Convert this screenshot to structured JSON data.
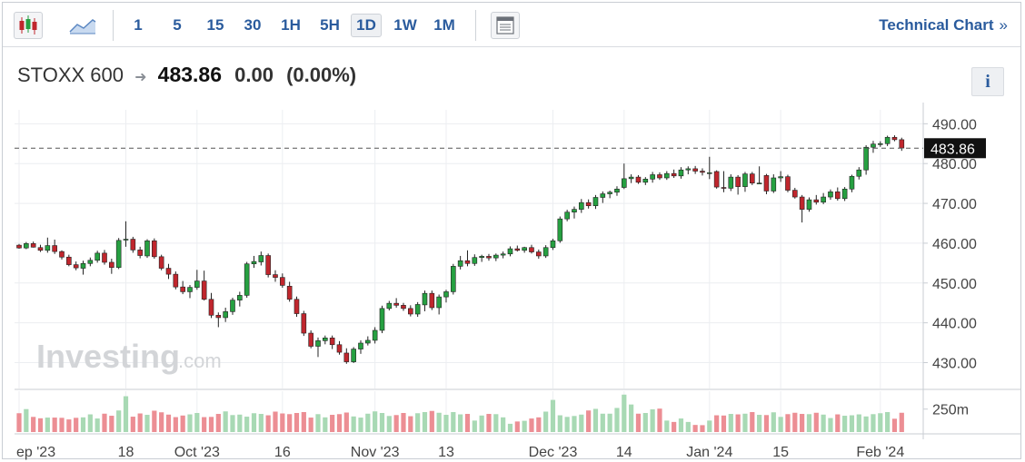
{
  "toolbar": {
    "chart_types": [
      "candlestick-icon",
      "area-chart-icon"
    ],
    "intervals": [
      "1",
      "5",
      "15",
      "30",
      "1H",
      "5H",
      "1D",
      "1W",
      "1M"
    ],
    "active_interval": "1D",
    "layout_icon": "layout-icon",
    "technical_chart_label": "Technical Chart",
    "technical_chart_chevron": "»"
  },
  "header": {
    "name": "STOXX 600",
    "price": "483.86",
    "change": "0.00",
    "change_pct": "(0.00%)",
    "info_label": "i"
  },
  "watermark": {
    "brand": "Investing",
    "suffix": ".com"
  },
  "colors": {
    "up": "#26a041",
    "down": "#c0262d",
    "vol_up": "#a8d9b4",
    "vol_down": "#ec8e94"
  },
  "chart_data": {
    "type": "candlestick",
    "title": "STOXX 600",
    "y_ticks": [
      "490.00",
      "480.00",
      "470.00",
      "460.00",
      "450.00",
      "440.00",
      "430.00"
    ],
    "ylim": [
      423.5,
      493.5
    ],
    "last_price": 483.86,
    "last_price_label": "483.86",
    "volume_tick_label": "250m",
    "x_tick_labels": [
      "ep '23",
      "18",
      "Oct '23",
      "16",
      "Nov '23",
      "13",
      "Dec '23",
      "14",
      "Jan '24",
      "15",
      "Feb '24"
    ],
    "x_tick_index": [
      0,
      15,
      25,
      37,
      50,
      60,
      75,
      85,
      97,
      107,
      121
    ],
    "candles": [
      [
        459.5,
        459.8,
        458.6,
        458.8
      ],
      [
        458.8,
        460.3,
        458.5,
        459.9
      ],
      [
        459.9,
        460.4,
        458.9,
        459.0
      ],
      [
        458.9,
        459.6,
        457.8,
        458.2
      ],
      [
        458.2,
        461.4,
        457.6,
        459.4
      ],
      [
        459.4,
        460.9,
        457.3,
        457.9
      ],
      [
        457.9,
        458.2,
        455.9,
        456.5
      ],
      [
        456.5,
        457.1,
        454.2,
        454.6
      ],
      [
        454.6,
        455.4,
        453.2,
        453.8
      ],
      [
        453.7,
        455.6,
        452.1,
        454.9
      ],
      [
        454.9,
        456.4,
        454.2,
        455.7
      ],
      [
        455.7,
        458.1,
        455.1,
        457.5
      ],
      [
        457.5,
        458.3,
        454.6,
        455.2
      ],
      [
        455.2,
        456.1,
        452.3,
        453.9
      ],
      [
        453.9,
        461.3,
        453.5,
        460.7
      ],
      [
        460.8,
        465.5,
        459.1,
        461.0
      ],
      [
        461.0,
        461.6,
        457.6,
        458.3
      ],
      [
        458.3,
        459.1,
        456.2,
        456.9
      ],
      [
        456.8,
        461.0,
        456.3,
        460.6
      ],
      [
        460.6,
        461.2,
        456.1,
        456.6
      ],
      [
        456.6,
        457.1,
        453.2,
        453.7
      ],
      [
        453.7,
        454.8,
        451.0,
        452.2
      ],
      [
        452.2,
        452.9,
        448.4,
        449.0
      ],
      [
        449.0,
        450.5,
        447.2,
        447.8
      ],
      [
        447.8,
        449.5,
        446.2,
        448.9
      ],
      [
        448.9,
        453.3,
        448.3,
        450.5
      ],
      [
        450.5,
        453.1,
        445.6,
        445.9
      ],
      [
        445.9,
        447.5,
        441.2,
        441.9
      ],
      [
        441.9,
        442.6,
        438.9,
        441.3
      ],
      [
        441.3,
        443.8,
        440.2,
        442.8
      ],
      [
        442.8,
        446.3,
        442.0,
        445.7
      ],
      [
        445.7,
        447.8,
        444.1,
        446.9
      ],
      [
        446.9,
        455.3,
        446.3,
        454.8
      ],
      [
        454.8,
        456.8,
        453.8,
        455.4
      ],
      [
        455.3,
        457.9,
        454.4,
        456.9
      ],
      [
        456.9,
        457.4,
        451.4,
        452.1
      ],
      [
        452.1,
        453.2,
        450.3,
        451.4
      ],
      [
        451.4,
        452.4,
        448.8,
        449.4
      ],
      [
        449.2,
        450.3,
        445.3,
        445.9
      ],
      [
        445.9,
        446.6,
        441.5,
        442.3
      ],
      [
        442.3,
        443.0,
        436.7,
        437.4
      ],
      [
        437.4,
        438.1,
        433.6,
        434.1
      ],
      [
        434.1,
        436.3,
        431.4,
        435.5
      ],
      [
        435.5,
        436.8,
        434.6,
        436.2
      ],
      [
        436.2,
        436.8,
        433.4,
        434.5
      ],
      [
        434.5,
        435.4,
        432.0,
        432.6
      ],
      [
        432.4,
        433.6,
        429.7,
        430.2
      ],
      [
        430.2,
        433.9,
        429.9,
        433.4
      ],
      [
        433.4,
        435.6,
        432.2,
        434.9
      ],
      [
        434.9,
        436.6,
        434.3,
        435.6
      ],
      [
        435.6,
        438.9,
        434.8,
        438.1
      ],
      [
        438.1,
        444.3,
        437.4,
        443.6
      ],
      [
        443.6,
        445.5,
        443.1,
        444.9
      ],
      [
        444.9,
        446.2,
        443.8,
        444.4
      ],
      [
        444.4,
        445.0,
        443.0,
        443.6
      ],
      [
        443.6,
        444.4,
        441.6,
        442.2
      ],
      [
        442.2,
        445.2,
        441.5,
        444.6
      ],
      [
        444.5,
        448.1,
        442.9,
        447.4
      ],
      [
        447.4,
        448.1,
        443.2,
        443.8
      ],
      [
        443.8,
        447.1,
        442.1,
        446.5
      ],
      [
        446.5,
        448.3,
        445.1,
        447.8
      ],
      [
        447.8,
        454.8,
        447.1,
        454.2
      ],
      [
        454.2,
        456.8,
        453.4,
        455.6
      ],
      [
        455.6,
        458.2,
        454.2,
        454.9
      ],
      [
        454.9,
        457.2,
        454.3,
        456.4
      ],
      [
        456.4,
        457.1,
        455.3,
        456.7
      ],
      [
        456.7,
        457.3,
        455.6,
        456.3
      ],
      [
        456.3,
        457.4,
        455.5,
        457.0
      ],
      [
        457.0,
        457.9,
        456.2,
        457.3
      ],
      [
        457.3,
        459.2,
        456.7,
        458.6
      ],
      [
        458.6,
        459.4,
        457.9,
        458.2
      ],
      [
        458.2,
        459.1,
        457.6,
        458.9
      ],
      [
        458.9,
        459.6,
        457.4,
        457.8
      ],
      [
        457.8,
        458.4,
        456.1,
        456.8
      ],
      [
        456.8,
        459.5,
        456.3,
        458.9
      ],
      [
        458.9,
        461.1,
        458.3,
        460.6
      ],
      [
        460.6,
        466.7,
        460.1,
        466.1
      ],
      [
        466.1,
        468.4,
        465.5,
        467.8
      ],
      [
        467.8,
        469.2,
        466.2,
        468.5
      ],
      [
        468.5,
        471.1,
        467.6,
        470.2
      ],
      [
        470.2,
        471.0,
        468.7,
        469.4
      ],
      [
        469.4,
        472.1,
        468.6,
        471.5
      ],
      [
        471.5,
        473.0,
        470.1,
        472.4
      ],
      [
        472.4,
        473.2,
        471.3,
        472.8
      ],
      [
        472.8,
        474.3,
        471.9,
        473.6
      ],
      [
        474.0,
        480.0,
        473.6,
        476.2
      ],
      [
        476.2,
        477.3,
        475.1,
        476.6
      ],
      [
        476.6,
        477.1,
        474.9,
        475.3
      ],
      [
        475.3,
        476.6,
        474.6,
        476.1
      ],
      [
        476.1,
        477.9,
        475.2,
        477.2
      ],
      [
        477.2,
        477.8,
        475.9,
        476.4
      ],
      [
        476.4,
        478.1,
        475.9,
        477.5
      ],
      [
        477.5,
        478.5,
        476.4,
        476.9
      ],
      [
        476.9,
        479.1,
        476.2,
        478.4
      ],
      [
        478.4,
        479.3,
        477.3,
        478.7
      ],
      [
        478.7,
        479.4,
        477.4,
        478.1
      ],
      [
        478.1,
        478.8,
        477.0,
        477.8
      ],
      [
        477.5,
        481.7,
        476.1,
        477.7
      ],
      [
        478.0,
        478.3,
        473.7,
        474.1
      ],
      [
        474.0,
        478.1,
        472.8,
        473.8
      ],
      [
        473.8,
        477.3,
        473.1,
        476.6
      ],
      [
        476.6,
        477.1,
        472.2,
        474.2
      ],
      [
        474.2,
        477.9,
        472.9,
        477.4
      ],
      [
        477.4,
        477.9,
        474.6,
        475.1
      ],
      [
        475.1,
        479.3,
        474.9,
        475.1
      ],
      [
        477.0,
        477.4,
        472.3,
        473.1
      ],
      [
        473.1,
        477.3,
        472.6,
        476.4
      ],
      [
        476.4,
        478.1,
        475.4,
        476.7
      ],
      [
        476.7,
        477.2,
        472.8,
        473.3
      ],
      [
        473.3,
        473.9,
        471.2,
        471.6
      ],
      [
        471.6,
        472.1,
        465.2,
        468.5
      ],
      [
        468.5,
        471.5,
        467.9,
        470.9
      ],
      [
        470.9,
        472.1,
        469.7,
        470.3
      ],
      [
        470.3,
        472.6,
        469.8,
        471.6
      ],
      [
        471.6,
        473.5,
        470.9,
        472.9
      ],
      [
        472.9,
        474.0,
        470.7,
        471.2
      ],
      [
        471.2,
        474.1,
        470.6,
        473.6
      ],
      [
        473.6,
        477.2,
        472.8,
        476.8
      ],
      [
        476.8,
        479.1,
        476.0,
        478.4
      ],
      [
        478.4,
        484.6,
        477.2,
        484.1
      ],
      [
        484.1,
        485.7,
        482.7,
        484.9
      ],
      [
        484.9,
        485.6,
        484.2,
        485.0
      ],
      [
        485.0,
        487.0,
        484.4,
        486.6
      ],
      [
        486.6,
        487.1,
        485.6,
        486.0
      ],
      [
        486.0,
        486.5,
        483.2,
        483.9
      ]
    ],
    "volumes": [
      0.82,
      1.0,
      0.66,
      0.6,
      0.63,
      0.63,
      0.62,
      0.55,
      0.62,
      0.64,
      0.77,
      0.59,
      0.8,
      0.71,
      0.94,
      1.56,
      0.67,
      0.81,
      0.75,
      0.93,
      0.86,
      0.76,
      0.65,
      0.72,
      0.77,
      0.83,
      0.65,
      0.66,
      0.79,
      0.9,
      0.74,
      0.76,
      0.67,
      0.82,
      0.79,
      0.73,
      0.89,
      0.81,
      0.78,
      0.83,
      0.87,
      0.63,
      0.78,
      0.64,
      0.75,
      0.78,
      0.85,
      0.68,
      0.63,
      0.8,
      0.9,
      0.83,
      0.7,
      0.74,
      0.83,
      0.69,
      0.82,
      0.87,
      0.92,
      0.84,
      0.75,
      0.87,
      0.77,
      0.79,
      0.5,
      0.72,
      0.79,
      0.78,
      0.64,
      0.36,
      0.46,
      0.49,
      0.59,
      0.64,
      0.89,
      1.4,
      0.73,
      0.66,
      0.7,
      0.76,
      0.94,
      1.01,
      0.8,
      0.8,
      1.05,
      1.63,
      1.2,
      0.8,
      0.83,
      0.99,
      1.02,
      0.5,
      0.44,
      0.59,
      0.44,
      0.31,
      0.3,
      0.5,
      0.73,
      0.72,
      0.79,
      0.77,
      0.8,
      0.87,
      0.75,
      0.74,
      0.86,
      0.66,
      0.78,
      0.84,
      0.79,
      0.78,
      0.84,
      0.76,
      0.61,
      0.77,
      0.71,
      0.73,
      0.77,
      0.68,
      0.78,
      0.82,
      0.87,
      0.58,
      0.84
    ]
  }
}
